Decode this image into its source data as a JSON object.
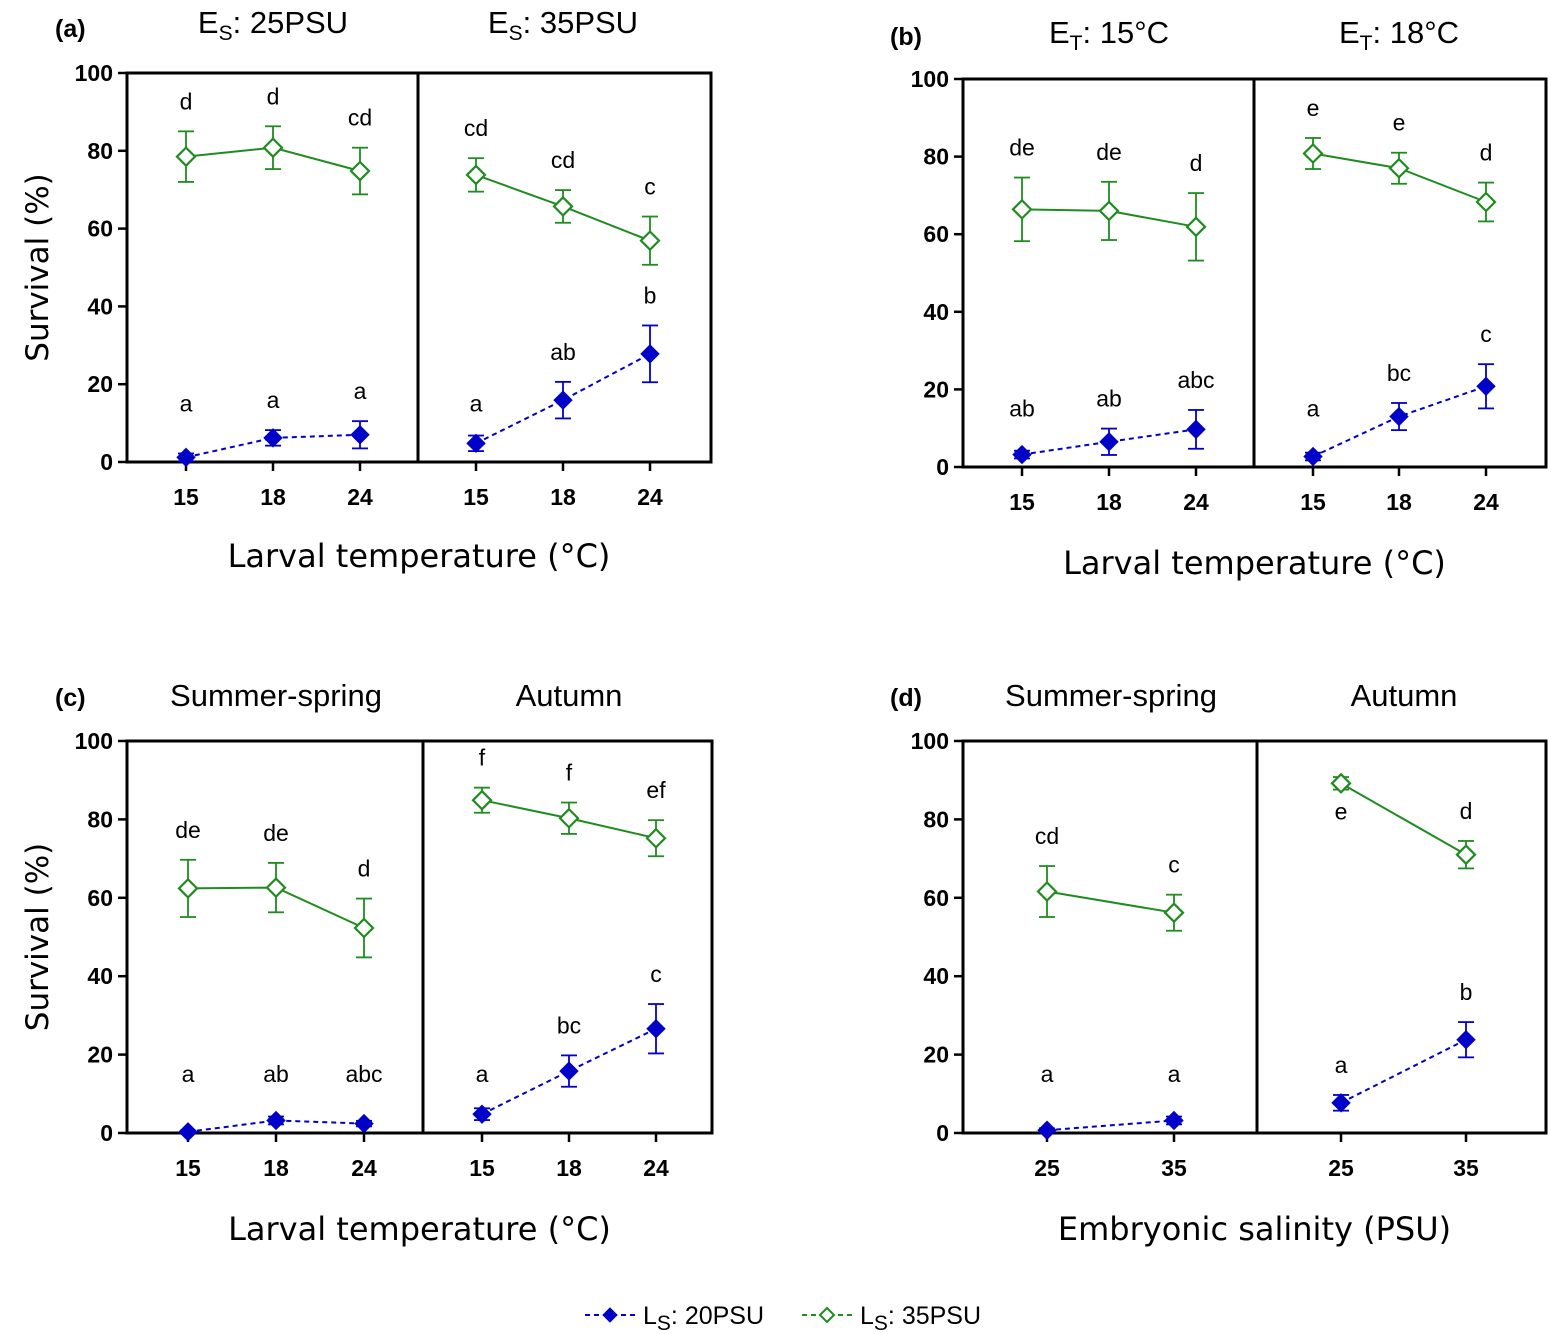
{
  "colors": {
    "ls20": "#0000c8",
    "ls35": "#1e8c1e",
    "axis": "#000000"
  },
  "legend": [
    {
      "key": "ls20",
      "main": "L",
      "sub": "S",
      "rest": ": 20PSU",
      "marker": "diamond-filled",
      "dash": true
    },
    {
      "key": "ls35",
      "main": "L",
      "sub": "S",
      "rest": ": 35PSU",
      "marker": "diamond-open",
      "dash": true
    }
  ],
  "chart_data": [
    {
      "id": "a",
      "type": "line",
      "panel_label": "(a)",
      "ylabel": "Survival (%)",
      "xlabel": "Larval temperature (°C)",
      "ylim": [
        0,
        100
      ],
      "yticks": [
        0,
        20,
        40,
        60,
        80,
        100
      ],
      "groups": [
        {
          "title": "E",
          "title_sub": "S",
          "title_rest": ": 25PSU",
          "categories": [
            "15",
            "18",
            "24"
          ],
          "series": [
            {
              "key": "ls35",
              "values": [
                78.5,
                80.8,
                74.8
              ],
              "errors": [
                6.5,
                5.5,
                6.0
              ],
              "letters": [
                "d",
                "d",
                "cd"
              ]
            },
            {
              "key": "ls20",
              "values": [
                1.2,
                6.2,
                7.0
              ],
              "errors": [
                1.0,
                2.0,
                3.5
              ],
              "letters": [
                "a",
                "a",
                "a"
              ]
            }
          ]
        },
        {
          "title": "E",
          "title_sub": "S",
          "title_rest": ": 35PSU",
          "categories": [
            "15",
            "18",
            "24"
          ],
          "series": [
            {
              "key": "ls35",
              "values": [
                73.8,
                65.7,
                56.9
              ],
              "errors": [
                4.3,
                4.2,
                6.2
              ],
              "letters": [
                "cd",
                "cd",
                "c"
              ]
            },
            {
              "key": "ls20",
              "values": [
                4.8,
                15.9,
                27.8
              ],
              "errors": [
                2.0,
                4.7,
                7.3
              ],
              "letters": [
                "a",
                "ab",
                "b"
              ]
            }
          ]
        }
      ]
    },
    {
      "id": "b",
      "type": "line",
      "panel_label": "(b)",
      "ylabel": "",
      "xlabel": "Larval temperature (°C)",
      "ylim": [
        0,
        100
      ],
      "yticks": [
        0,
        20,
        40,
        60,
        80,
        100
      ],
      "groups": [
        {
          "title": "E",
          "title_sub": "T",
          "title_rest": ": 15°C",
          "categories": [
            "15",
            "18",
            "24"
          ],
          "series": [
            {
              "key": "ls35",
              "values": [
                66.4,
                66.0,
                61.9
              ],
              "errors": [
                8.2,
                7.5,
                8.7
              ],
              "letters": [
                "de",
                "de",
                "d"
              ]
            },
            {
              "key": "ls20",
              "values": [
                3.2,
                6.5,
                9.7
              ],
              "errors": [
                1.0,
                3.4,
                5.0
              ],
              "letters": [
                "ab",
                "ab",
                "abc"
              ]
            }
          ]
        },
        {
          "title": "E",
          "title_sub": "T",
          "title_rest": ": 18°C",
          "categories": [
            "15",
            "18",
            "24"
          ],
          "series": [
            {
              "key": "ls35",
              "values": [
                80.8,
                77.0,
                68.3
              ],
              "errors": [
                4.0,
                4.0,
                5.0
              ],
              "letters": [
                "e",
                "e",
                "d"
              ]
            },
            {
              "key": "ls20",
              "values": [
                2.7,
                13.0,
                20.8
              ],
              "errors": [
                1.0,
                3.5,
                5.7
              ],
              "letters": [
                "a",
                "bc",
                "c"
              ]
            }
          ]
        }
      ]
    },
    {
      "id": "c",
      "type": "line",
      "panel_label": "(c)",
      "ylabel": "Survival (%)",
      "xlabel": "Larval temperature (°C)",
      "ylim": [
        0,
        100
      ],
      "yticks": [
        0,
        20,
        40,
        60,
        80,
        100
      ],
      "groups": [
        {
          "title": "Summer-spring",
          "title_sub": "",
          "title_rest": "",
          "categories": [
            "15",
            "18",
            "24"
          ],
          "series": [
            {
              "key": "ls35",
              "values": [
                62.4,
                62.6,
                52.3
              ],
              "errors": [
                7.3,
                6.3,
                7.5
              ],
              "letters": [
                "de",
                "de",
                "d"
              ]
            },
            {
              "key": "ls20",
              "values": [
                0.3,
                3.2,
                2.4
              ],
              "errors": [
                0.3,
                1.0,
                0.7
              ],
              "letters": [
                "a",
                "ab",
                "abc"
              ]
            }
          ]
        },
        {
          "title": "Autumn",
          "title_sub": "",
          "title_rest": "",
          "categories": [
            "15",
            "18",
            "24"
          ],
          "series": [
            {
              "key": "ls35",
              "values": [
                84.9,
                80.3,
                75.2
              ],
              "errors": [
                3.2,
                4.0,
                4.6
              ],
              "letters": [
                "f",
                "f",
                "ef"
              ]
            },
            {
              "key": "ls20",
              "values": [
                4.8,
                15.8,
                26.6
              ],
              "errors": [
                1.5,
                4.0,
                6.3
              ],
              "letters": [
                "a",
                "bc",
                "c"
              ]
            }
          ]
        }
      ]
    },
    {
      "id": "d",
      "type": "line",
      "panel_label": "(d)",
      "ylabel": "",
      "xlabel": "Embryonic salinity (PSU)",
      "ylim": [
        0,
        100
      ],
      "yticks": [
        0,
        20,
        40,
        60,
        80,
        100
      ],
      "groups": [
        {
          "title": "Summer-spring",
          "title_sub": "",
          "title_rest": "",
          "categories": [
            "25",
            "35"
          ],
          "series": [
            {
              "key": "ls35",
              "values": [
                61.6,
                56.2
              ],
              "errors": [
                6.5,
                4.6
              ],
              "letters": [
                "cd",
                "c"
              ]
            },
            {
              "key": "ls20",
              "values": [
                0.7,
                3.2
              ],
              "errors": [
                0.5,
                1.0
              ],
              "letters": [
                "a",
                "a"
              ]
            }
          ]
        },
        {
          "title": "Autumn",
          "title_sub": "",
          "title_rest": "",
          "categories": [
            "25",
            "35"
          ],
          "series": [
            {
              "key": "ls35",
              "values": [
                89.2,
                71.0
              ],
              "errors": [
                1.6,
                3.5
              ],
              "letters": [
                "e",
                "d"
              ]
            },
            {
              "key": "ls20",
              "values": [
                7.7,
                23.8
              ],
              "errors": [
                2.0,
                4.5
              ],
              "letters": [
                "a",
                "b"
              ]
            }
          ]
        }
      ]
    }
  ]
}
